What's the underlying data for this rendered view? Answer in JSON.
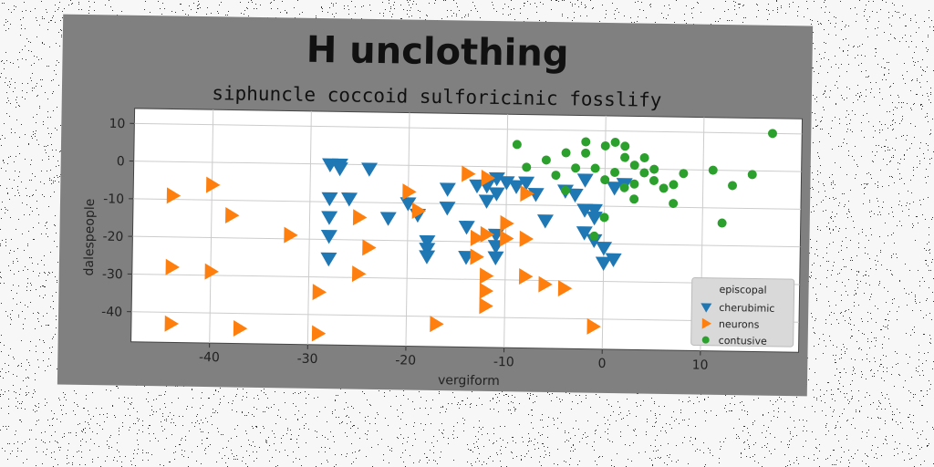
{
  "chart_data": {
    "type": "scatter",
    "title": "H unclothing",
    "subtitle": "siphuncle coccoid sulforicinic fosslify",
    "xlabel": "vergiform",
    "ylabel": "dalespeople",
    "xlim": [
      -48,
      20
    ],
    "ylim": [
      -48,
      14
    ],
    "xticks": [
      "-40",
      "-30",
      "-20",
      "-10",
      "0",
      "10"
    ],
    "yticks": [
      "10",
      "0",
      "-10",
      "-20",
      "-30",
      "-40"
    ],
    "grid": true,
    "legend": {
      "title": "episcopal",
      "placement": "bottom-right"
    },
    "series": [
      {
        "name": "cherubimic",
        "color": "#1f77b4",
        "marker": "triangle-down",
        "points": [
          [
            -28,
            0
          ],
          [
            -27,
            0
          ],
          [
            -27,
            -1
          ],
          [
            -24,
            -1
          ],
          [
            -28,
            -9
          ],
          [
            -26,
            -9
          ],
          [
            -28,
            -14
          ],
          [
            -28,
            -19
          ],
          [
            -28,
            -25
          ],
          [
            -22,
            -14
          ],
          [
            -20,
            -10
          ],
          [
            -19,
            -13
          ],
          [
            -18,
            -20
          ],
          [
            -18,
            -22
          ],
          [
            -18,
            -24
          ],
          [
            -16,
            -11
          ],
          [
            -16,
            -6
          ],
          [
            -14,
            -16
          ],
          [
            -14,
            -24
          ],
          [
            -13,
            -5
          ],
          [
            -12,
            -5
          ],
          [
            -12,
            -9
          ],
          [
            -11,
            -3
          ],
          [
            -11,
            -7
          ],
          [
            -11,
            -18
          ],
          [
            -11,
            -21
          ],
          [
            -11,
            -24
          ],
          [
            -10,
            -4
          ],
          [
            -9,
            -5
          ],
          [
            -8,
            -4
          ],
          [
            -7,
            -7
          ],
          [
            -6,
            -14
          ],
          [
            -4,
            -6
          ],
          [
            -3,
            -7
          ],
          [
            -2,
            -3
          ],
          [
            -2,
            -11
          ],
          [
            -2,
            -17
          ],
          [
            -1,
            -13
          ],
          [
            -1,
            -19
          ],
          [
            0,
            -21
          ],
          [
            0,
            -25
          ],
          [
            1,
            -24
          ],
          [
            -1,
            -11
          ],
          [
            1,
            -5
          ],
          [
            2,
            -4
          ]
        ]
      },
      {
        "name": "neurons",
        "color": "#ff7f0e",
        "marker": "triangle-right",
        "points": [
          [
            -44,
            -9
          ],
          [
            -40,
            -6
          ],
          [
            -38,
            -14
          ],
          [
            -44,
            -28
          ],
          [
            -40,
            -29
          ],
          [
            -44,
            -43
          ],
          [
            -37,
            -44
          ],
          [
            -32,
            -19
          ],
          [
            -29,
            -34
          ],
          [
            -29,
            -45
          ],
          [
            -25,
            -14
          ],
          [
            -24,
            -22
          ],
          [
            -25,
            -29
          ],
          [
            -20,
            -7
          ],
          [
            -19,
            -12
          ],
          [
            -17,
            -42
          ],
          [
            -13,
            -19
          ],
          [
            -13,
            -24
          ],
          [
            -12,
            -18
          ],
          [
            -12,
            -29
          ],
          [
            -12,
            -33
          ],
          [
            -12,
            -37
          ],
          [
            -10,
            -15
          ],
          [
            -10,
            -19
          ],
          [
            -14,
            -2
          ],
          [
            -8,
            -7
          ],
          [
            -8,
            -19
          ],
          [
            -8,
            -29
          ],
          [
            -6,
            -31
          ],
          [
            -4,
            -32
          ],
          [
            -1,
            -42
          ],
          [
            -12,
            -3
          ]
        ]
      },
      {
        "name": "contusive",
        "color": "#2ca02c",
        "marker": "circle",
        "points": [
          [
            -9,
            6
          ],
          [
            -8,
            0
          ],
          [
            -6,
            2
          ],
          [
            -5,
            -2
          ],
          [
            -4,
            -6
          ],
          [
            -3,
            0
          ],
          [
            -2,
            4
          ],
          [
            -2,
            7
          ],
          [
            -1,
            0
          ],
          [
            0,
            -3
          ],
          [
            0,
            6
          ],
          [
            1,
            7
          ],
          [
            1,
            -1
          ],
          [
            2,
            -5
          ],
          [
            2,
            3
          ],
          [
            2,
            6
          ],
          [
            3,
            1
          ],
          [
            3,
            -4
          ],
          [
            3,
            -8
          ],
          [
            4,
            -1
          ],
          [
            4,
            3
          ],
          [
            5,
            0
          ],
          [
            5,
            -3
          ],
          [
            6,
            -5
          ],
          [
            7,
            -9
          ],
          [
            7,
            -4
          ],
          [
            8,
            -1
          ],
          [
            11,
            0
          ],
          [
            12,
            -14
          ],
          [
            13,
            -4
          ],
          [
            15,
            -1
          ],
          [
            17,
            10
          ],
          [
            -4,
            4
          ],
          [
            0,
            -13
          ],
          [
            -1,
            -18
          ]
        ]
      }
    ]
  }
}
